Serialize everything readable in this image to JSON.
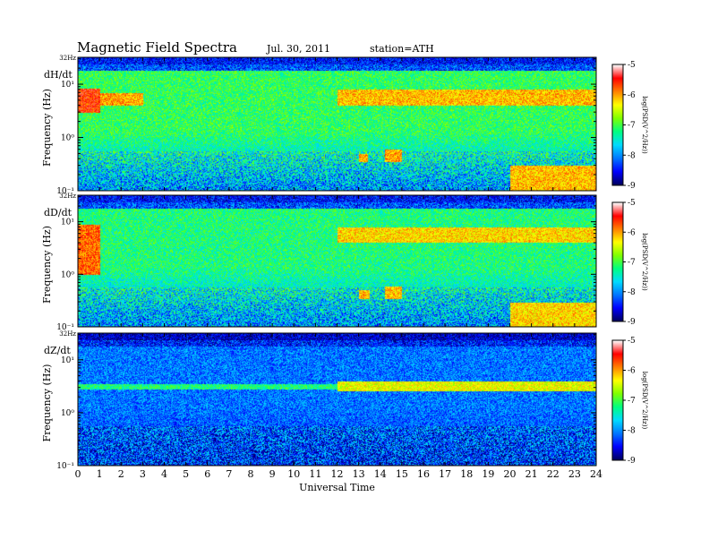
{
  "title": "Magnetic Field Spectra",
  "date": "Jul. 30, 2011",
  "station": "station=ATH",
  "chart_data": {
    "type": "heatmap",
    "xlabel": "Universal Time",
    "xlim": [
      0,
      24
    ],
    "x_ticks": [
      "0",
      "1",
      "2",
      "3",
      "4",
      "5",
      "6",
      "7",
      "8",
      "9",
      "10",
      "11",
      "12",
      "13",
      "14",
      "15",
      "16",
      "17",
      "18",
      "19",
      "20",
      "21",
      "22",
      "23",
      "24"
    ],
    "yscale": "log",
    "ylim": [
      0.1,
      32
    ],
    "top_label": "32Hz",
    "colorbar": {
      "label": "log(PSD(V^2/Hz))",
      "range": [
        -9,
        -5
      ],
      "ticks": [
        "-5",
        "-6",
        "-7",
        "-8",
        "-9"
      ],
      "colormap": [
        "#000060",
        "#0000ff",
        "#0078ff",
        "#00dcff",
        "#00ff80",
        "#80ff00",
        "#ffff00",
        "#ff8000",
        "#ff0000",
        "#ffffff"
      ]
    },
    "panels": [
      {
        "component": "dH/dt",
        "ylabel": "Frequency (Hz)",
        "y_ticks": [
          "10¹",
          "10⁰",
          "10⁻¹"
        ],
        "background_level": -7.1,
        "low_freq_level": -8.0,
        "top_band_level": -8.6,
        "features": [
          {
            "t": [
              0.0,
              1.0
            ],
            "f": [
              3.0,
              8.5
            ],
            "level": -5.6
          },
          {
            "t": [
              1.0,
              3.0
            ],
            "f": [
              4.0,
              7.0
            ],
            "level": -6.0
          },
          {
            "t": [
              12.0,
              24.0
            ],
            "f": [
              4.0,
              8.0
            ],
            "level": -6.1
          },
          {
            "t": [
              13.0,
              13.4
            ],
            "f": [
              0.35,
              0.5
            ],
            "level": -6.0
          },
          {
            "t": [
              14.2,
              15.0
            ],
            "f": [
              0.35,
              0.6
            ],
            "level": -6.0
          },
          {
            "t": [
              20.0,
              24.0
            ],
            "f": [
              0.1,
              0.3
            ],
            "level": -6.1
          }
        ]
      },
      {
        "component": "dD/dt",
        "ylabel": "Frequency (Hz)",
        "y_ticks": [
          "10¹",
          "10⁰",
          "10⁻¹"
        ],
        "background_level": -7.2,
        "low_freq_level": -8.0,
        "top_band_level": -8.6,
        "features": [
          {
            "t": [
              0.0,
              1.0
            ],
            "f": [
              1.0,
              9.0
            ],
            "level": -5.8
          },
          {
            "t": [
              12.0,
              24.0
            ],
            "f": [
              4.0,
              8.0
            ],
            "level": -6.2
          },
          {
            "t": [
              13.0,
              13.5
            ],
            "f": [
              0.35,
              0.5
            ],
            "level": -6.1
          },
          {
            "t": [
              14.2,
              15.0
            ],
            "f": [
              0.35,
              0.6
            ],
            "level": -6.1
          },
          {
            "t": [
              20.0,
              24.0
            ],
            "f": [
              0.1,
              0.3
            ],
            "level": -6.2
          }
        ]
      },
      {
        "component": "dZ/dt",
        "ylabel": "Frequency (Hz)",
        "y_ticks": [
          "10¹",
          "10⁰",
          "10⁻¹"
        ],
        "background_level": -8.1,
        "low_freq_level": -8.4,
        "top_band_level": -8.8,
        "features": [
          {
            "t": [
              0.0,
              24.0
            ],
            "f": [
              2.8,
              3.6
            ],
            "level": -7.2
          },
          {
            "t": [
              12.0,
              24.0
            ],
            "f": [
              2.6,
              4.0
            ],
            "level": -6.4
          }
        ]
      }
    ]
  }
}
